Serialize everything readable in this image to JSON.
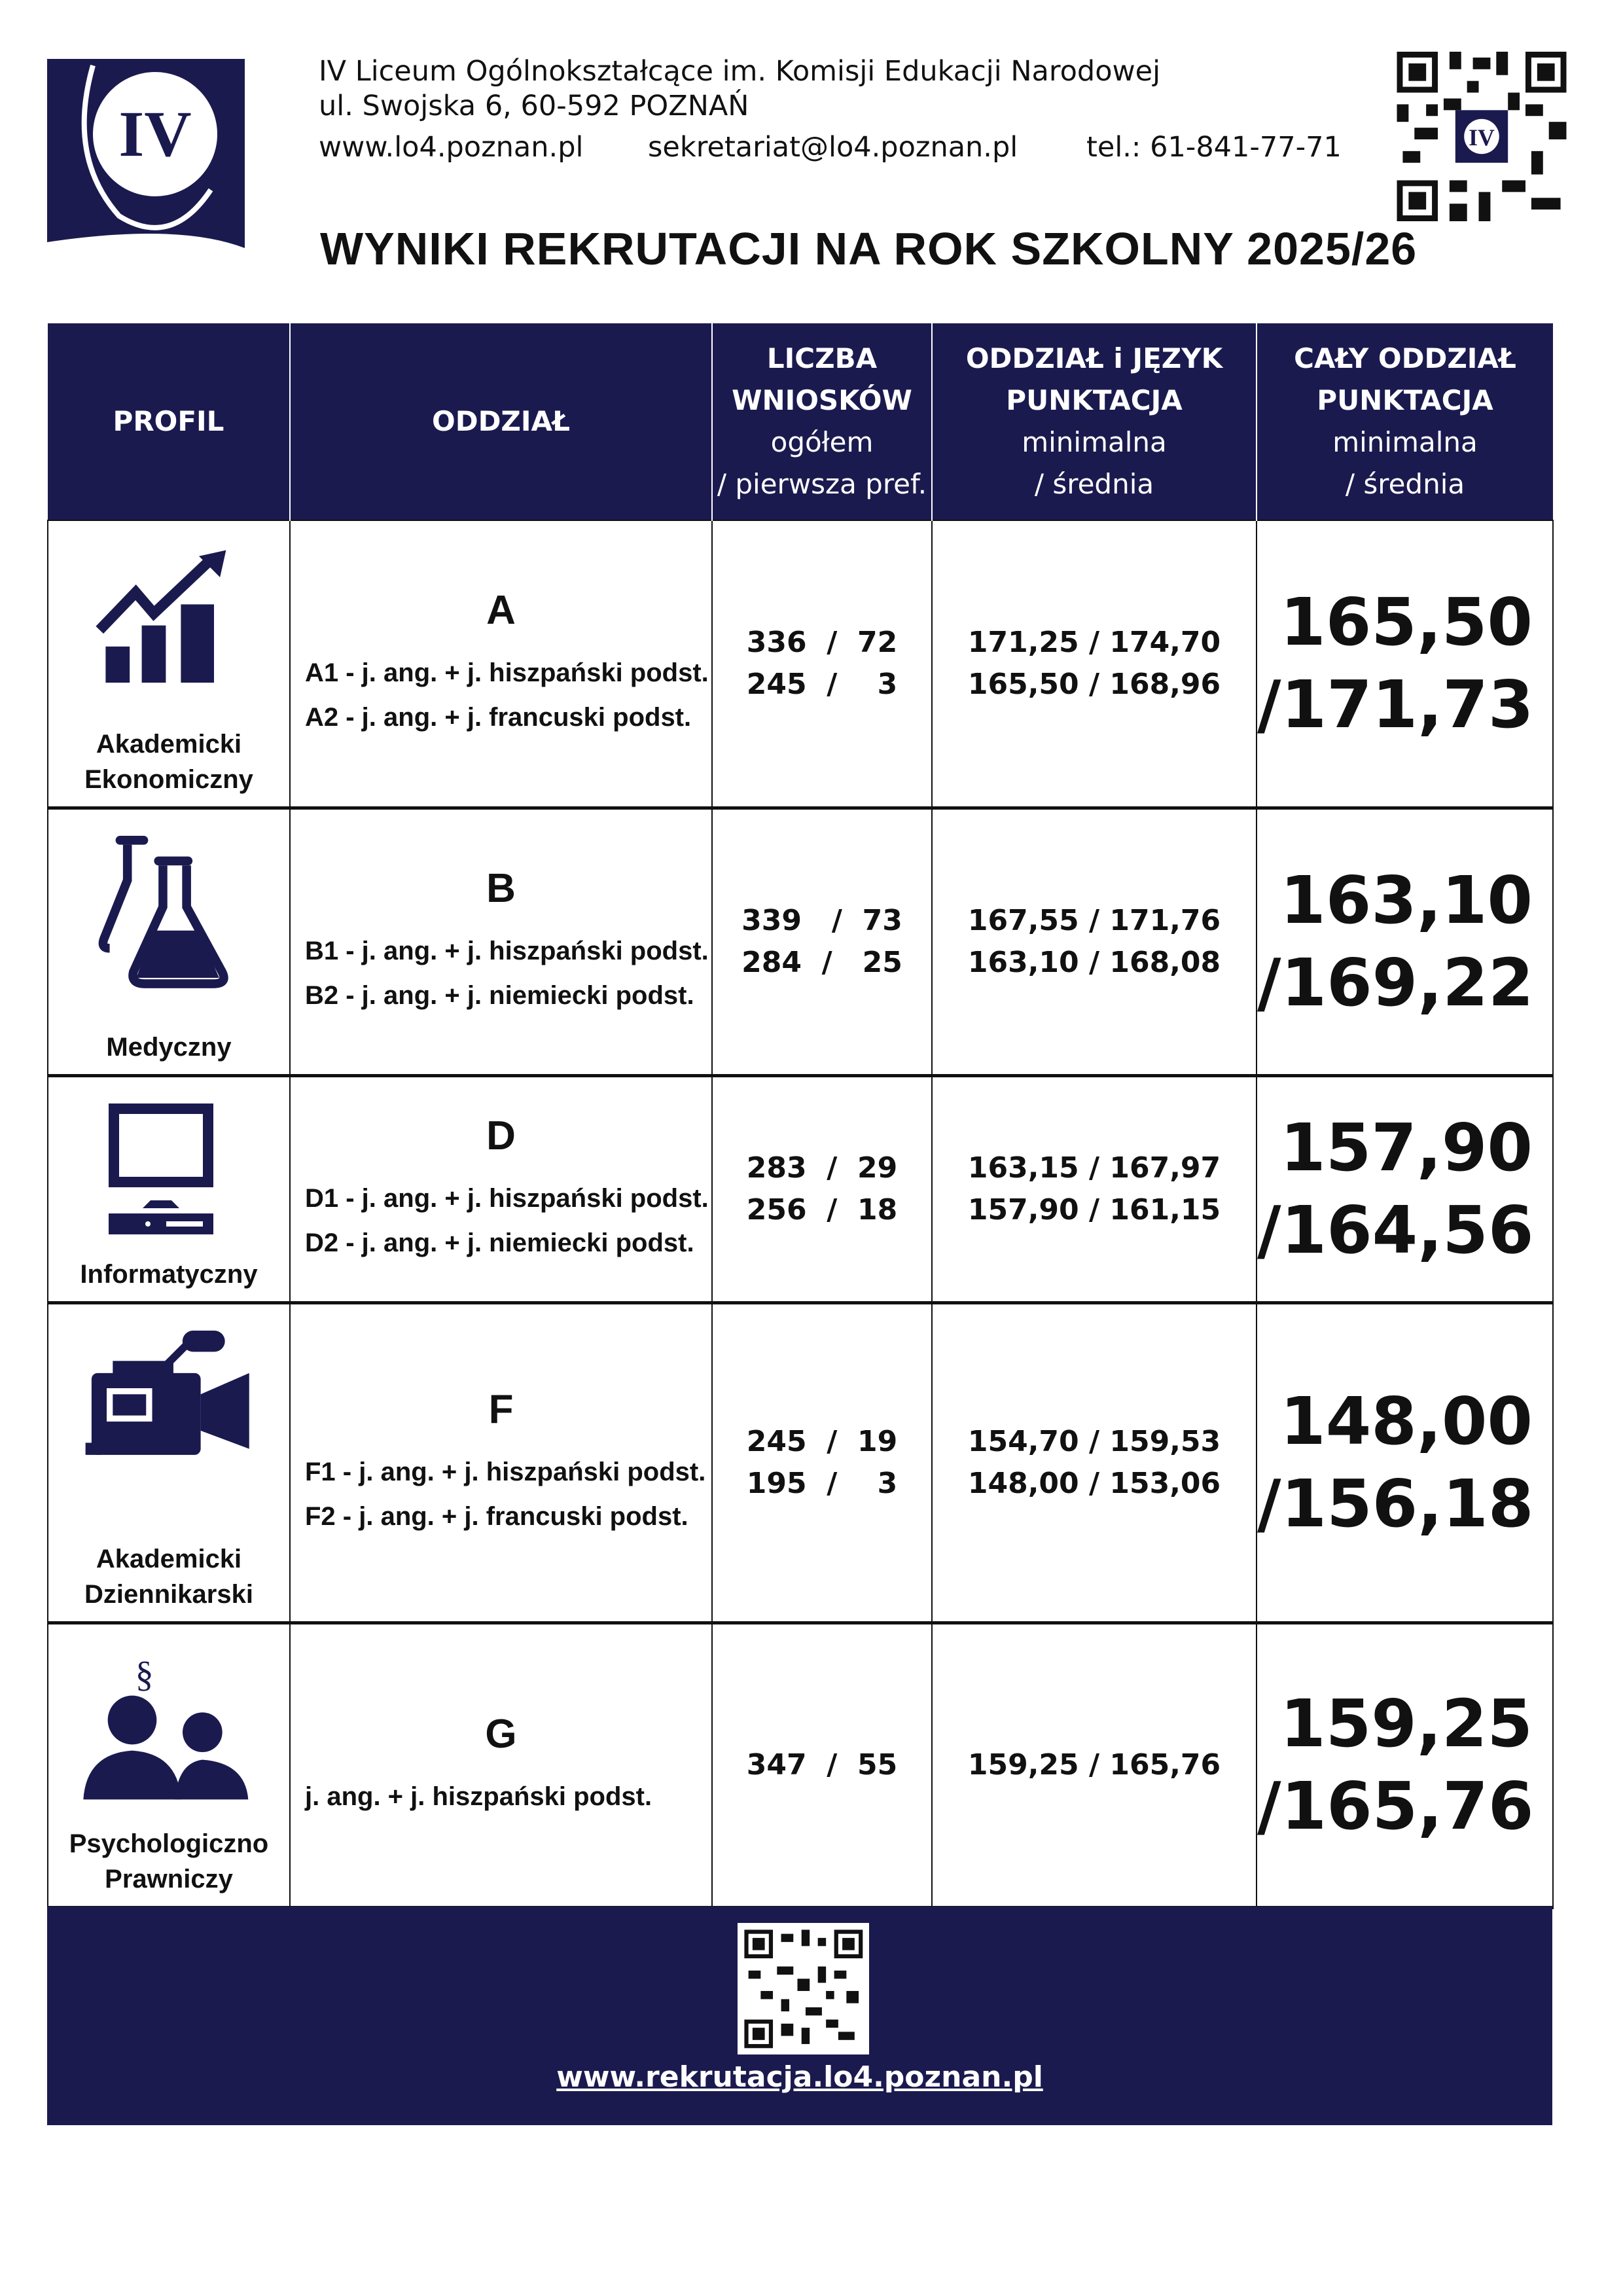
{
  "header": {
    "school_name": "IV Liceum Ogólnokształcące im. Komisji Edukacji Narodowej",
    "address": "ul. Swojska 6, 60-592 POZNAŃ",
    "website": "www.lo4.poznan.pl",
    "email": "sekretariat@lo4.poznan.pl",
    "phone": "tel.: 61-841-77-71",
    "logo_text": "IV"
  },
  "title": "WYNIKI REKRUTACJI NA ROK SZKOLNY 2025/26",
  "colors": {
    "navy": "#1b1a4f"
  },
  "table": {
    "headers": {
      "profil": "PROFIL",
      "oddzial": "ODDZIAŁ",
      "liczba_1": "LICZBA",
      "liczba_2": "WNIOSKÓW",
      "liczba_3": "ogółem",
      "liczba_4": "/ pierwsza pref.",
      "jezyk_1": "ODDZIAŁ i JĘZYK",
      "jezyk_2": "PUNKTACJA",
      "jezyk_3": "minimalna",
      "jezyk_4": "/ średnia",
      "caly_1": "CAŁY ODDZIAŁ",
      "caly_2": "PUNKTACJA",
      "caly_3": "minimalna",
      "caly_4": "/ średnia"
    },
    "rows": [
      {
        "icon": "chart-growth-icon",
        "profile_1": "Akademicki",
        "profile_2": "Ekonomiczny",
        "letter": "A",
        "sub_1": "A1 - j. ang. + j. hiszpański podst.",
        "sub_2": "A2 - j. ang. + j. francuski podst.",
        "apps_1": "336  /  72",
        "apps_2": "245  /    3",
        "scores_1": "171,25 / 174,70",
        "scores_2": "165,50 / 168,96",
        "total_min": "165,50",
        "total_avg": "/171,73"
      },
      {
        "icon": "flask-icon",
        "profile_1": "Medyczny",
        "profile_2": "",
        "letter": "B",
        "sub_1": "B1 - j. ang. + j. hiszpański podst.",
        "sub_2": "B2 - j. ang. + j. niemiecki podst.",
        "apps_1": "339   /  73",
        "apps_2": "284  /   25",
        "scores_1": "167,55 / 171,76",
        "scores_2": "163,10 / 168,08",
        "total_min": "163,10",
        "total_avg": "/169,22"
      },
      {
        "icon": "computer-icon",
        "profile_1": "Informatyczny",
        "profile_2": "",
        "letter": "D",
        "sub_1": "D1 - j. ang. + j. hiszpański podst.",
        "sub_2": "D2 - j. ang. + j. niemiecki podst.",
        "apps_1": "283  /  29",
        "apps_2": "256  /  18",
        "scores_1": "163,15 / 167,97",
        "scores_2": "157,90 / 161,15",
        "total_min": "157,90",
        "total_avg": "/164,56"
      },
      {
        "icon": "video-camera-icon",
        "profile_1": "Akademicki",
        "profile_2": "Dziennikarski",
        "letter": "F",
        "sub_1": "F1 - j. ang. + j. hiszpański podst.",
        "sub_2": "F2 - j. ang. + j. francuski podst.",
        "apps_1": "245  /  19",
        "apps_2": "195  /    3",
        "scores_1": "154,70 / 159,53",
        "scores_2": "148,00 / 153,06",
        "total_min": "148,00",
        "total_avg": "/156,18"
      },
      {
        "icon": "people-law-icon",
        "profile_1": "Psychologiczno",
        "profile_2": "Prawniczy",
        "letter": "G",
        "sub_1": "j. ang. + j. hiszpański podst.",
        "sub_2": "",
        "apps_1": "347  /  55",
        "apps_2": "",
        "scores_1": "159,25 / 165,76",
        "scores_2": "",
        "total_min": "159,25",
        "total_avg": "/165,76"
      }
    ]
  },
  "footer": {
    "link": "www.rekrutacja.lo4.poznan.pl"
  }
}
